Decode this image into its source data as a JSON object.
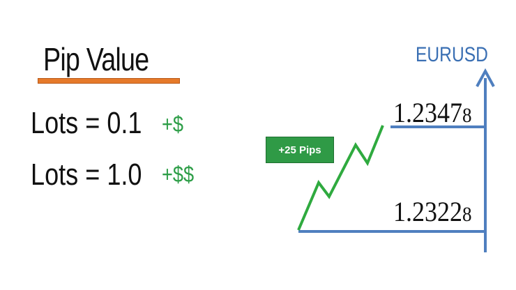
{
  "heading": {
    "title": "Pip Value"
  },
  "lots": [
    {
      "label": "Lots = 0.1",
      "gain": "+$"
    },
    {
      "label": "Lots = 1.0",
      "gain": "+$$"
    }
  ],
  "chart": {
    "pair": "EURUSD",
    "badge": "+25 Pips",
    "high_price": {
      "main": "1.2347",
      "fraction": "8"
    },
    "low_price": {
      "main": "1.2322",
      "fraction": "8"
    }
  },
  "colors": {
    "underline": "#e67a2a",
    "gain_green": "#2e9e48",
    "axis_blue": "#4f7fbf",
    "badge_green": "#2f9a46"
  }
}
